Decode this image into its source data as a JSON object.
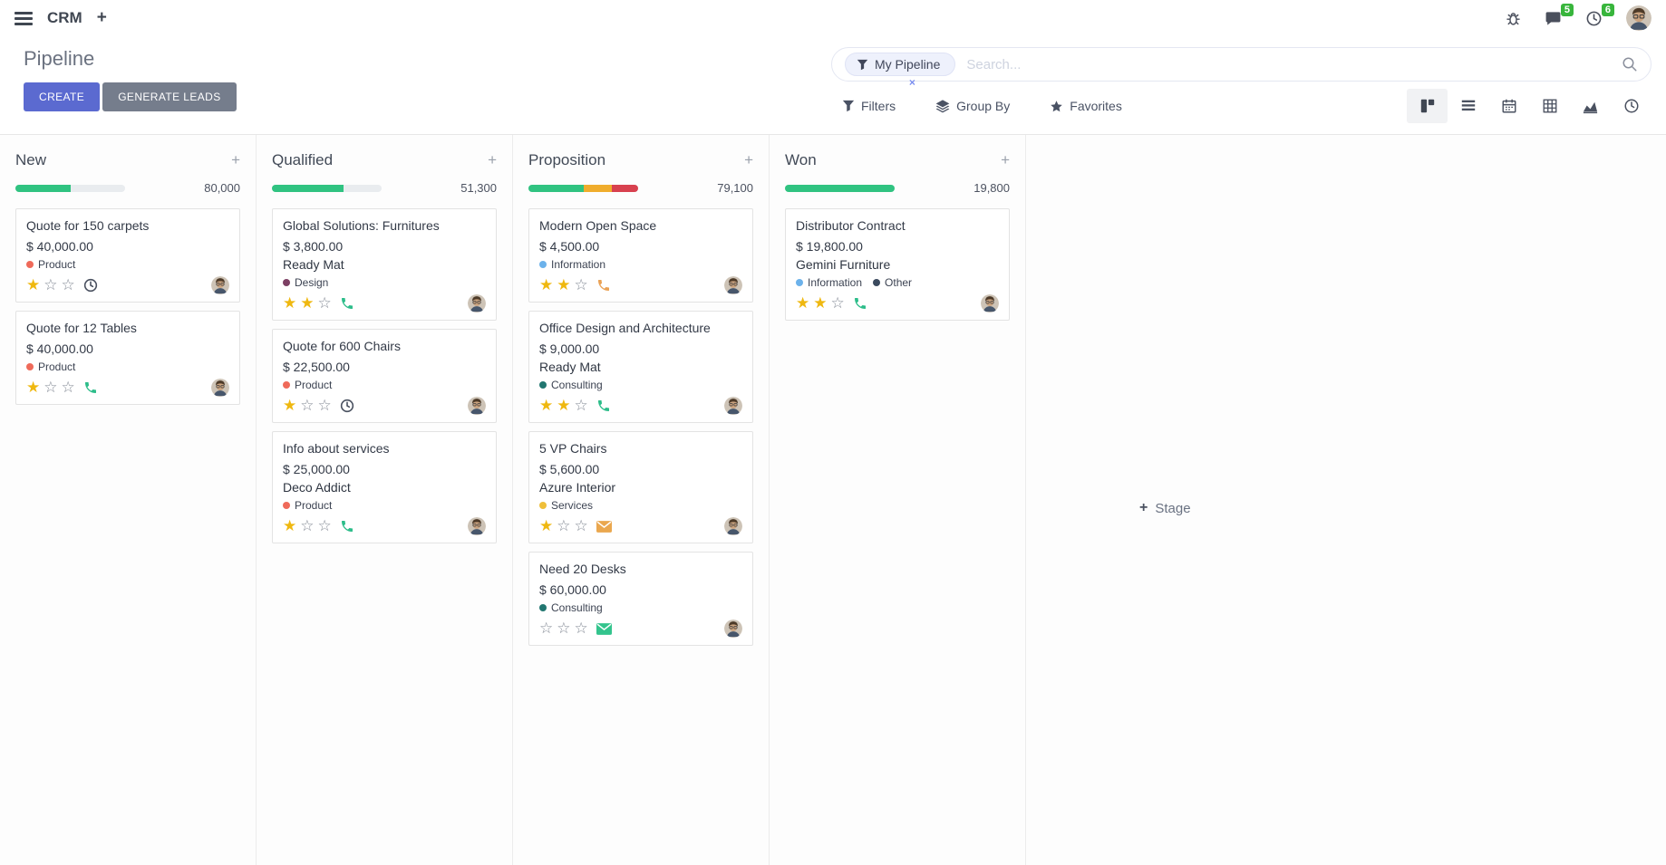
{
  "navbar": {
    "app_name": "CRM",
    "plus": "+",
    "messages_badge": "5",
    "activities_badge": "6"
  },
  "control_panel": {
    "title": "Pipeline",
    "create_label": "CREATE",
    "generate_leads_label": "GENERATE LEADS",
    "search": {
      "facet": "My Pipeline",
      "remove": "×",
      "placeholder": "Search..."
    },
    "filters_label": "Filters",
    "group_by_label": "Group By",
    "favorites_label": "Favorites"
  },
  "colors": {
    "primary": "#5b6ad0",
    "secondary": "#757d8c",
    "success": "#30c381",
    "warning": "#f0ad2d",
    "danger": "#d8414f",
    "badge_green": "#38b53c"
  },
  "board": {
    "add_stage_label": "Stage",
    "columns": [
      {
        "name": "New",
        "value": "80,000",
        "progress": [
          {
            "color": "#30c381",
            "pct": 50
          }
        ],
        "cards": [
          {
            "title": "Quote for 150 carpets",
            "amount": "$ 40,000.00",
            "tags": [
              {
                "label": "Product",
                "color": "#ef6a5a"
              }
            ],
            "stars": 1,
            "activity": {
              "icon": "clock",
              "color": "#4a5160"
            }
          },
          {
            "title": "Quote for 12 Tables",
            "amount": "$ 40,000.00",
            "tags": [
              {
                "label": "Product",
                "color": "#ef6a5a"
              }
            ],
            "stars": 1,
            "activity": {
              "icon": "phone",
              "color": "#2dbd8a"
            }
          }
        ]
      },
      {
        "name": "Qualified",
        "value": "51,300",
        "progress": [
          {
            "color": "#30c381",
            "pct": 65
          }
        ],
        "cards": [
          {
            "title": "Global Solutions: Furnitures",
            "amount": "$ 3,800.00",
            "partner": "Ready Mat",
            "tags": [
              {
                "label": "Design",
                "color": "#7c3f63"
              }
            ],
            "stars": 2,
            "activity": {
              "icon": "phone",
              "color": "#2dbd8a"
            }
          },
          {
            "title": "Quote for 600 Chairs",
            "amount": "$ 22,500.00",
            "tags": [
              {
                "label": "Product",
                "color": "#ef6a5a"
              }
            ],
            "stars": 1,
            "activity": {
              "icon": "clock",
              "color": "#4a5160"
            }
          },
          {
            "title": "Info about services",
            "amount": "$ 25,000.00",
            "partner": "Deco Addict",
            "tags": [
              {
                "label": "Product",
                "color": "#ef6a5a"
              }
            ],
            "stars": 1,
            "activity": {
              "icon": "phone",
              "color": "#2dbd8a"
            }
          }
        ]
      },
      {
        "name": "Proposition",
        "value": "79,100",
        "progress": [
          {
            "color": "#30c381",
            "pct": 50
          },
          {
            "color": "#f0ad2d",
            "pct": 26
          },
          {
            "color": "#d8414f",
            "pct": 24
          }
        ],
        "cards": [
          {
            "title": "Modern Open Space",
            "amount": "$ 4,500.00",
            "tags": [
              {
                "label": "Information",
                "color": "#6cb2eb"
              }
            ],
            "stars": 2,
            "activity": {
              "icon": "phone",
              "color": "#eaa256"
            }
          },
          {
            "title": "Office Design and Architecture",
            "amount": "$ 9,000.00",
            "partner": "Ready Mat",
            "tags": [
              {
                "label": "Consulting",
                "color": "#217670"
              }
            ],
            "stars": 2,
            "activity": {
              "icon": "phone",
              "color": "#2dbd8a"
            }
          },
          {
            "title": "5 VP Chairs",
            "amount": "$ 5,600.00",
            "partner": "Azure Interior",
            "tags": [
              {
                "label": "Services",
                "color": "#efbf3a"
              }
            ],
            "stars": 1,
            "activity": {
              "icon": "mail",
              "color": "#eaa74e"
            }
          },
          {
            "title": "Need 20 Desks",
            "amount": "$ 60,000.00",
            "tags": [
              {
                "label": "Consulting",
                "color": "#217670"
              }
            ],
            "stars": 0,
            "activity": {
              "icon": "mail",
              "color": "#33c48d"
            }
          }
        ]
      },
      {
        "name": "Won",
        "value": "19,800",
        "progress": [
          {
            "color": "#30c381",
            "pct": 100
          }
        ],
        "cards": [
          {
            "title": "Distributor Contract",
            "amount": "$ 19,800.00",
            "partner": "Gemini Furniture",
            "tags": [
              {
                "label": "Information",
                "color": "#6cb2eb"
              },
              {
                "label": "Other",
                "color": "#3b4a5e"
              }
            ],
            "stars": 2,
            "activity": {
              "icon": "phone",
              "color": "#2dbd8a"
            }
          }
        ]
      }
    ]
  }
}
